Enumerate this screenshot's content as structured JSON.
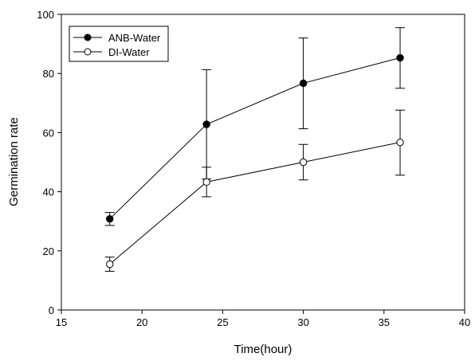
{
  "chart_data": {
    "type": "line",
    "title": "",
    "xlabel": "Time(hour)",
    "ylabel": "Germination rate",
    "xlim": [
      15,
      40
    ],
    "ylim": [
      0,
      100
    ],
    "xticks": [
      15,
      20,
      25,
      30,
      35,
      40
    ],
    "yticks": [
      0,
      20,
      40,
      60,
      80,
      100
    ],
    "grid": false,
    "legend_position": "top-left",
    "x": [
      18,
      24,
      30,
      36
    ],
    "series": [
      {
        "name": "ANB-Water",
        "marker": "filled-circle",
        "color": "#000000",
        "values": [
          30.8,
          62.8,
          76.7,
          85.3
        ],
        "error_low": [
          28.6,
          44.3,
          61.3,
          75.0
        ],
        "error_high": [
          33.0,
          81.3,
          92.0,
          95.5
        ]
      },
      {
        "name": "DI-Water",
        "marker": "open-circle",
        "color": "#000000",
        "values": [
          15.5,
          43.3,
          50.0,
          56.7
        ],
        "error_low": [
          13.1,
          38.3,
          44.0,
          45.6
        ],
        "error_high": [
          17.9,
          48.3,
          56.0,
          67.6
        ]
      }
    ]
  }
}
